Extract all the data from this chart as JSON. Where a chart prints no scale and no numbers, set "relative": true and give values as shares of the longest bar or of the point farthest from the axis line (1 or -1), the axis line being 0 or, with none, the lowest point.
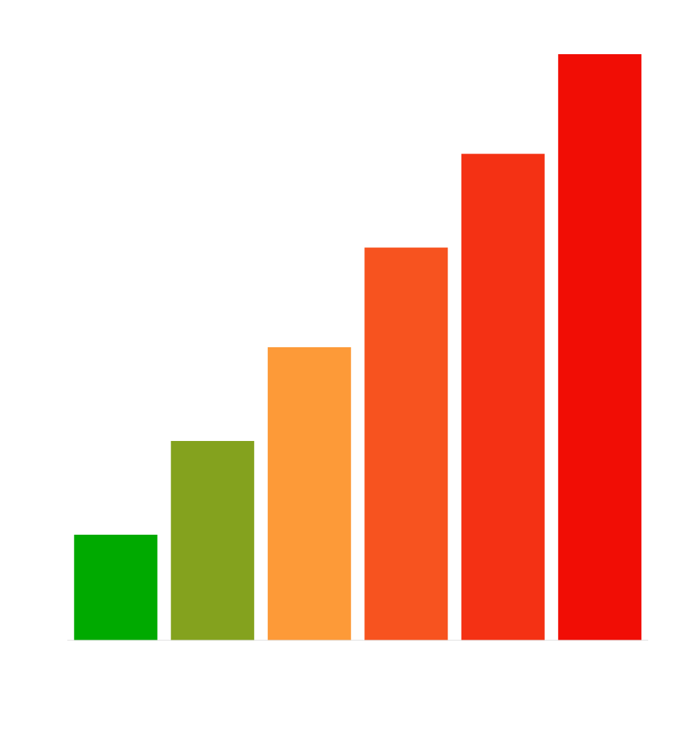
{
  "chart_data": {
    "type": "bar",
    "relative": true,
    "categories": [
      null,
      null,
      null,
      null,
      null,
      null
    ],
    "values": [
      0.18,
      0.34,
      0.5,
      0.67,
      0.83,
      1
    ],
    "colors": [
      "#00aa00",
      "#84a21e",
      "#fd9a38",
      "#f7531f",
      "#f43114",
      "#f10d05"
    ]
  }
}
